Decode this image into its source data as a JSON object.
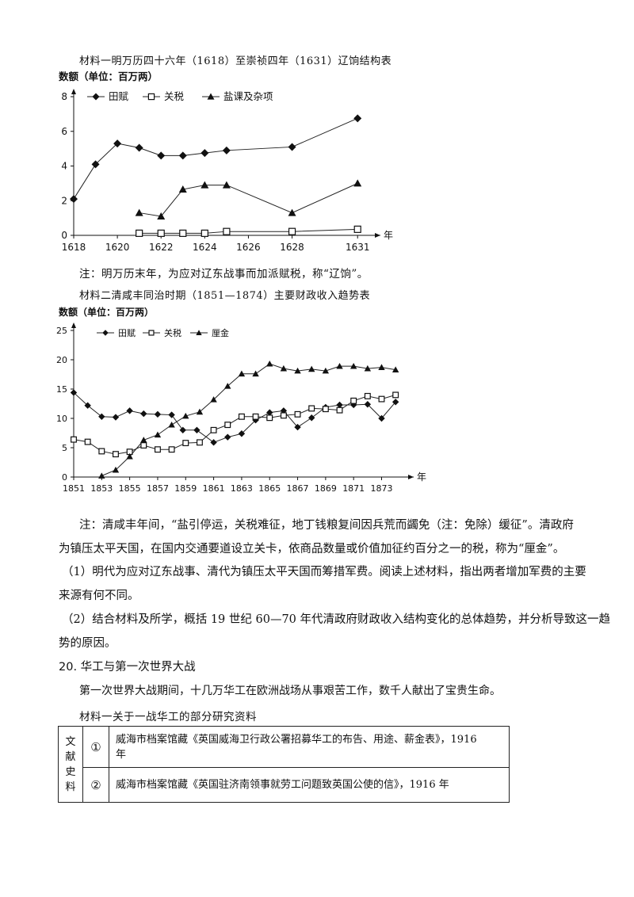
{
  "chart1": {
    "caption": "材料一明万历四十六年（1618）至崇祯四年（1631）辽饷结构表",
    "ylabel": "数额（单位：百万两）",
    "x_unit": "年",
    "note": "注：明万历末年，为应对辽东战事而加派赋税，称“辽饷”。"
  },
  "chart2": {
    "caption": "材料二清咸丰同治时期（1851—1874）主要财政收入趋势表",
    "ylabel": "数额（单位：百万两）",
    "x_unit": "年"
  },
  "note2_line1": "注：清咸丰年间，“盐引停运，关税难征，地丁钱粮复间因兵荒而蠲免（注：免除）缓征”。清政府",
  "note2_line2": "为镇压太平天国，在国内交通要道设立关卡，依商品数量或价值加征约百分之一的税，称为“厘金”。",
  "q1_line1": "（1）明代为应对辽东战事、清代为镇压太平天国而筹措军费。阅读上述材料，指出两者增加军费的主要",
  "q1_line2": "来源有何不同。",
  "q2_line1": "（2）结合材料及所学，概括 19 世纪 60—70 年代清政府财政收入结构变化的总体趋势，并分析导致这一趋",
  "q2_line2": "势的原因。",
  "section_title": "20. 华工与第一次世界大战",
  "intro": "第一次世界大战期间，十几万华工在欧洲战场从事艰苦工作，数千人献出了宝贵生命。",
  "material_caption": "材料一关于一战华工的部分研究资料",
  "table": {
    "category": [
      "文",
      "献",
      "史",
      "料"
    ],
    "rows": [
      {
        "num": "①",
        "text_line1": "威海市档案馆藏《英国威海卫行政公署招募华工的布告、用途、薪金表》，1916",
        "text_line2": "年"
      },
      {
        "num": "②",
        "text_line1": "威海市档案馆藏《英国驻济南领事就劳工问题致英国公使的信》，1916 年",
        "text_line2": ""
      }
    ]
  },
  "chart_data": [
    {
      "type": "line",
      "x_ticks": [
        "1618",
        "1620",
        "1622",
        "1624",
        "1626",
        "1628",
        "1631"
      ],
      "y_ticks": [
        "0",
        "2",
        "4",
        "6",
        "8"
      ],
      "ylim": [
        0,
        8
      ],
      "xlim": [
        1618,
        1631.5
      ],
      "series": [
        {
          "name": "田赋",
          "marker": "diamond",
          "x": [
            1618,
            1619,
            1620,
            1621,
            1622,
            1623,
            1624,
            1625,
            1628,
            1631
          ],
          "y": [
            2.1,
            4.1,
            5.3,
            5.05,
            4.6,
            4.6,
            4.75,
            4.9,
            5.1,
            6.75
          ]
        },
        {
          "name": "关税",
          "marker": "square",
          "x": [
            1621,
            1622,
            1623,
            1624,
            1625,
            1628,
            1631
          ],
          "y": [
            0.12,
            0.12,
            0.12,
            0.12,
            0.22,
            0.22,
            0.35
          ]
        },
        {
          "name": "盐课及杂项",
          "marker": "triangle",
          "x": [
            1621,
            1622,
            1623,
            1624,
            1625,
            1628,
            1631
          ],
          "y": [
            1.3,
            1.1,
            2.65,
            2.9,
            2.9,
            1.3,
            3.0
          ]
        }
      ]
    },
    {
      "type": "line",
      "x_ticks": [
        "1851",
        "1853",
        "1855",
        "1857",
        "1859",
        "1861",
        "1863",
        "1865",
        "1867",
        "1869",
        "1871",
        "1873"
      ],
      "y_ticks": [
        "0",
        "5",
        "10",
        "15",
        "20",
        "25"
      ],
      "ylim": [
        0,
        25
      ],
      "xlim": [
        1851,
        1874.5
      ],
      "series": [
        {
          "name": "田赋",
          "marker": "diamond",
          "x": [
            1851,
            1852,
            1853,
            1854,
            1855,
            1856,
            1857,
            1858,
            1858.8,
            1859.8,
            1861,
            1862,
            1863,
            1864,
            1865,
            1866,
            1867,
            1868,
            1869,
            1870,
            1871,
            1872,
            1873,
            1874
          ],
          "y": [
            14.4,
            12.2,
            10.3,
            10.2,
            11.3,
            10.8,
            10.7,
            10.6,
            8.0,
            8.0,
            5.9,
            6.8,
            7.4,
            9.7,
            11.0,
            11.3,
            8.5,
            10.1,
            11.9,
            12.3,
            12.3,
            12.4,
            10.0,
            12.8
          ]
        },
        {
          "name": "关税",
          "marker": "square",
          "x": [
            1851,
            1852,
            1853,
            1854,
            1855,
            1856,
            1857,
            1858,
            1859,
            1860,
            1861,
            1862,
            1863,
            1864,
            1865,
            1866,
            1867,
            1868,
            1869,
            1870,
            1871,
            1872,
            1873,
            1874
          ],
          "y": [
            6.4,
            6.0,
            4.4,
            3.9,
            4.3,
            5.4,
            4.7,
            4.7,
            5.8,
            5.9,
            8.0,
            8.9,
            10.3,
            10.3,
            10.1,
            10.5,
            10.7,
            11.7,
            11.6,
            11.4,
            13.0,
            13.8,
            13.3,
            14.0
          ]
        },
        {
          "name": "厘金",
          "marker": "triangle",
          "x": [
            1853,
            1854,
            1855,
            1856,
            1857,
            1858,
            1859,
            1860,
            1861,
            1862,
            1863,
            1864,
            1865,
            1866,
            1867,
            1868,
            1869,
            1870,
            1871,
            1872,
            1873,
            1874
          ],
          "y": [
            0.2,
            1.2,
            3.5,
            6.3,
            7.2,
            8.9,
            10.4,
            11.1,
            13.2,
            15.5,
            17.6,
            17.6,
            19.3,
            18.5,
            18.1,
            18.4,
            18.1,
            18.9,
            18.9,
            18.5,
            18.7,
            18.3
          ]
        }
      ]
    }
  ]
}
